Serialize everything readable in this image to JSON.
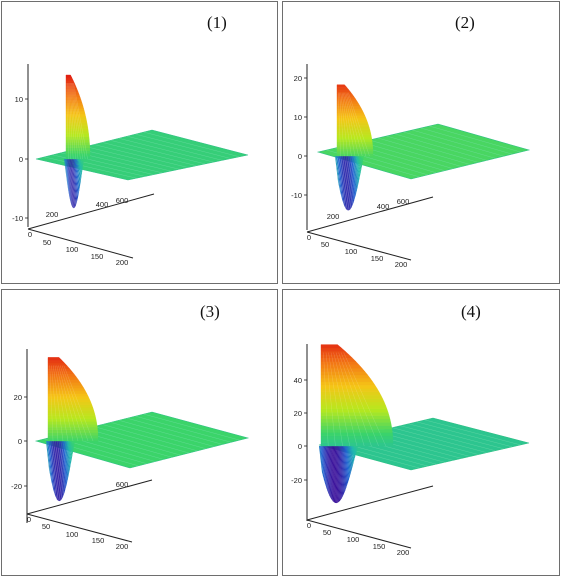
{
  "chart_data": [
    {
      "type": "surface-3d",
      "panel_label": "(1)",
      "z_ticks": [
        "10",
        "0",
        "-10"
      ],
      "y_ticks": [
        "200",
        "400",
        "600"
      ],
      "x_ticks": [
        "0",
        "50",
        "100",
        "150",
        "200"
      ],
      "z_range": [
        -10,
        15
      ],
      "peak_max": 15,
      "peak_min": -9,
      "colormap": [
        "#3b0a96",
        "#1f5fd0",
        "#20b7b0",
        "#3bd46a",
        "#b6e81f",
        "#f5c516",
        "#f27414",
        "#e01b12"
      ]
    },
    {
      "type": "surface-3d",
      "panel_label": "(2)",
      "z_ticks": [
        "20",
        "10",
        "0",
        "-10"
      ],
      "y_ticks": [
        "200",
        "400",
        "600"
      ],
      "x_ticks": [
        "0",
        "50",
        "100",
        "150",
        "200"
      ],
      "z_range": [
        -20,
        25
      ],
      "peak_max": 23,
      "peak_min": -18,
      "colormap": [
        "#3b0a96",
        "#1f5fd0",
        "#20b7b0",
        "#3bd46a",
        "#b6e81f",
        "#f5c516",
        "#f27414",
        "#e01b12"
      ]
    },
    {
      "type": "surface-3d",
      "panel_label": "(3)",
      "z_ticks": [
        "20",
        "0",
        "-20"
      ],
      "y_ticks": [
        "600"
      ],
      "x_ticks": [
        "0",
        "50",
        "100",
        "150",
        "200"
      ],
      "z_range": [
        -30,
        40
      ],
      "peak_max": 38,
      "peak_min": -28,
      "colormap": [
        "#3b0a96",
        "#1f5fd0",
        "#20b7b0",
        "#3bd46a",
        "#b6e81f",
        "#f5c516",
        "#f27414",
        "#e01b12"
      ]
    },
    {
      "type": "surface-3d",
      "panel_label": "(4)",
      "z_ticks": [
        "40",
        "20",
        "0",
        "-20"
      ],
      "y_ticks": [],
      "x_ticks": [
        "0",
        "50",
        "100",
        "150",
        "200"
      ],
      "z_range": [
        -30,
        55
      ],
      "peak_max": 52,
      "peak_min": -30,
      "colormap": [
        "#3b0a96",
        "#1f5fd0",
        "#20b7b0",
        "#3bd46a",
        "#b6e81f",
        "#f5c516",
        "#f27414",
        "#e01b12"
      ]
    }
  ]
}
